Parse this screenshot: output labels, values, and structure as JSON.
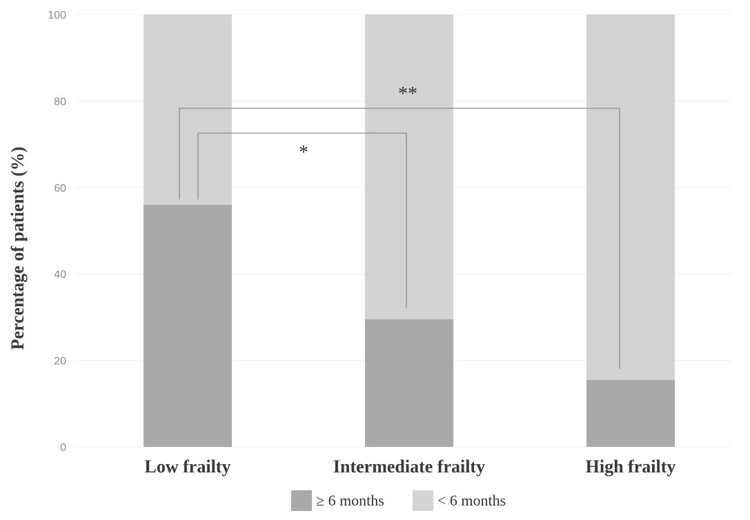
{
  "chart_data": {
    "type": "bar",
    "stacked": true,
    "title": "",
    "xlabel": "",
    "ylabel": "Percentage of patients (%)",
    "ylim": [
      0,
      100
    ],
    "yticks": [
      "0",
      "20",
      "40",
      "60",
      "80",
      "100"
    ],
    "grid": true,
    "legend_position": "bottom",
    "categories": [
      "Low frailty",
      "Intermediate frailty",
      "High frailty"
    ],
    "series": [
      {
        "name": "≥ 6 months",
        "color": "#a9a9a9",
        "values": [
          56,
          29.5,
          15.5
        ]
      },
      {
        "name": "< 6 months",
        "color": "#d3d3d3",
        "values": [
          44,
          70.5,
          84.5
        ]
      }
    ],
    "annotations": [
      {
        "label": "*",
        "from": "Low frailty",
        "to": "Intermediate frailty"
      },
      {
        "label": "**",
        "from": "Low frailty",
        "to": "High frailty"
      }
    ]
  }
}
